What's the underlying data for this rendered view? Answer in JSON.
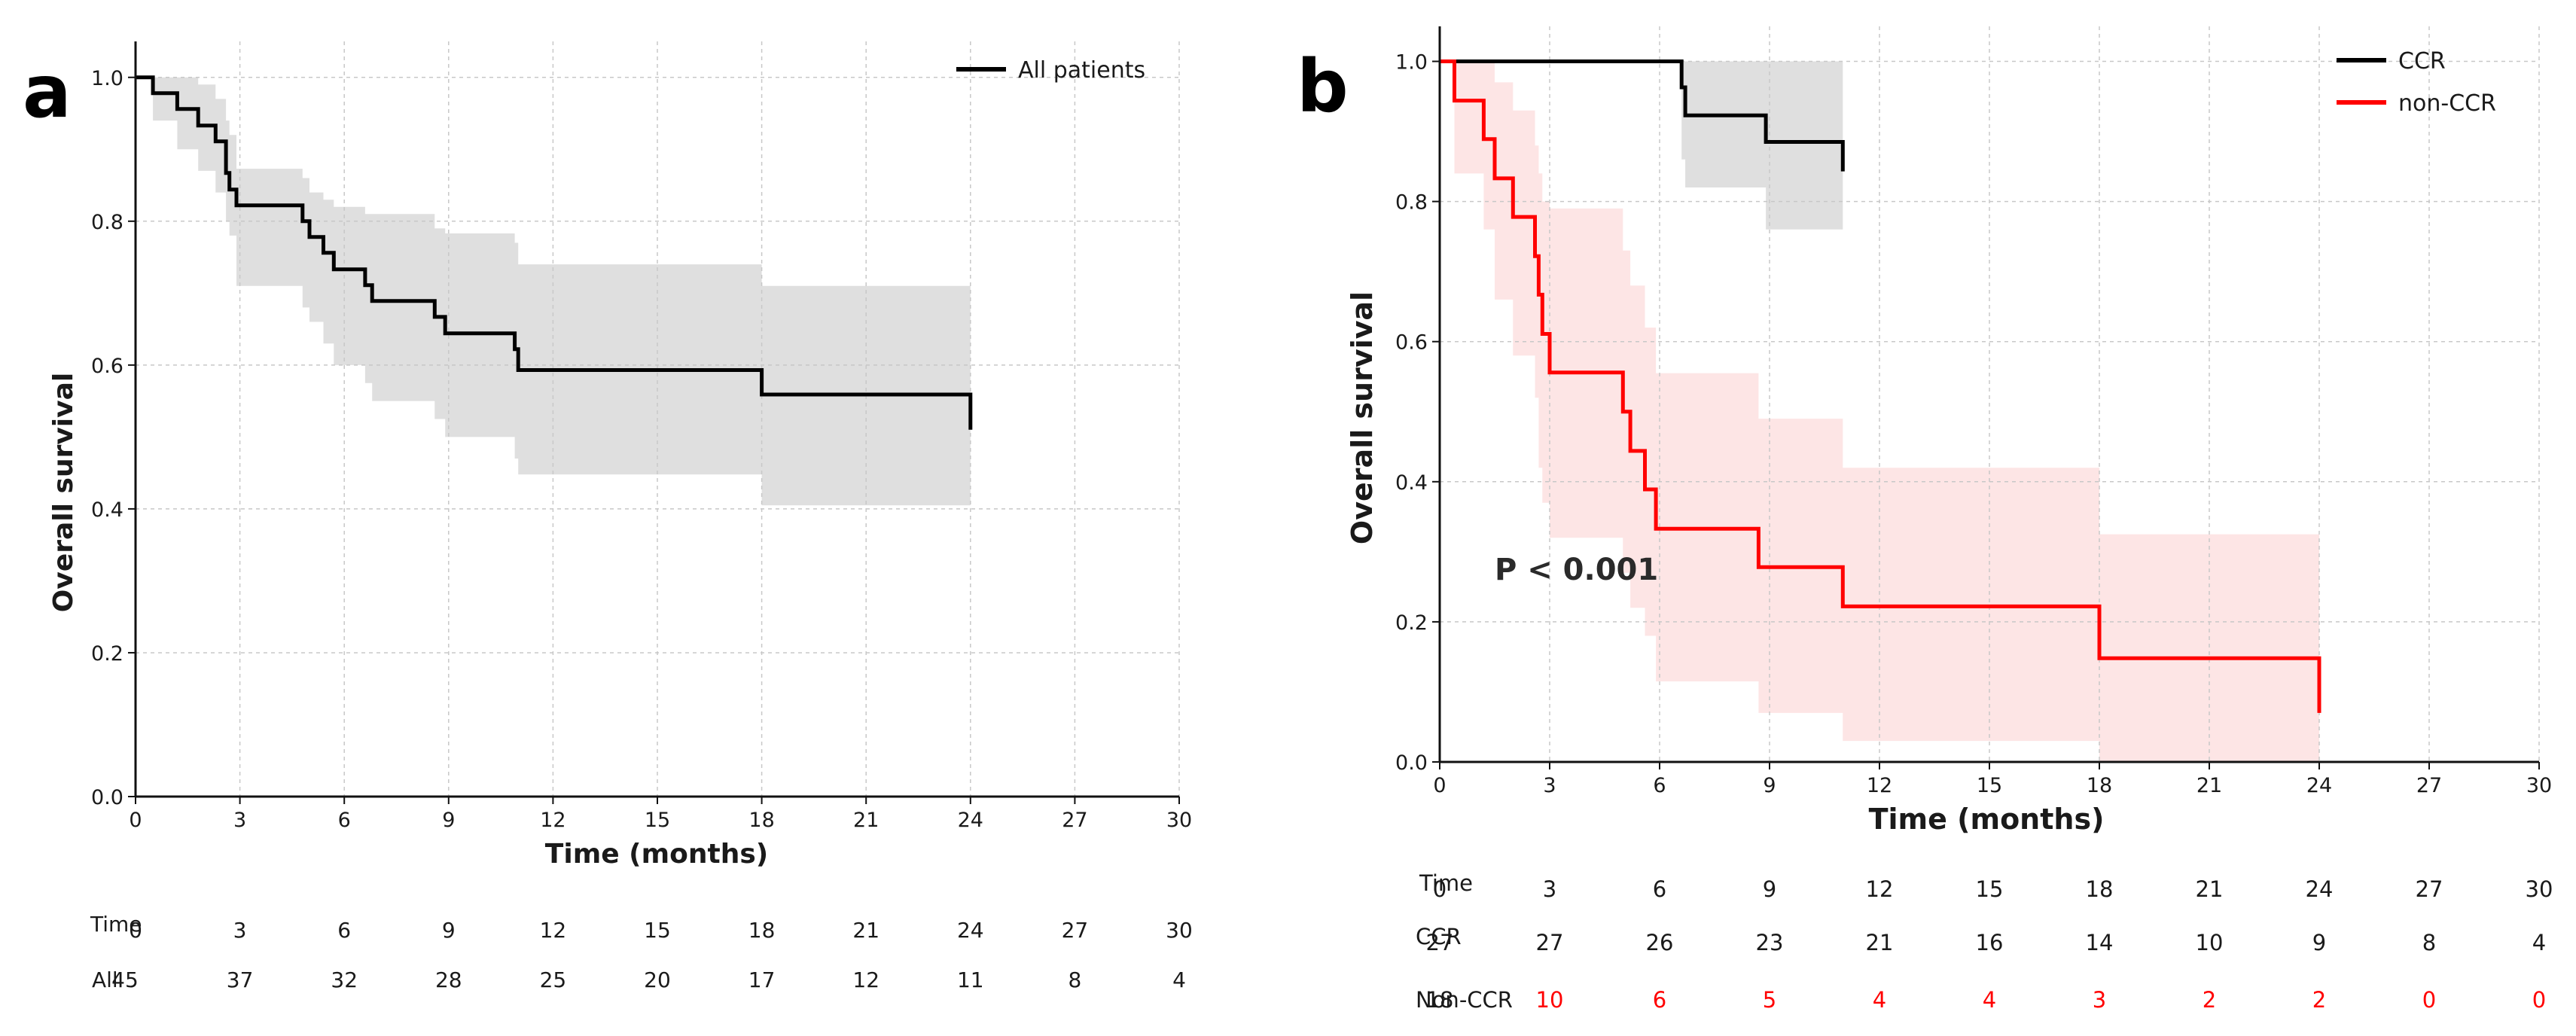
{
  "chart_data": [
    {
      "panel": "a",
      "type": "line",
      "subtype": "kaplan-meier",
      "xlabel": "Time (months)",
      "ylabel": "Overall survival",
      "xlim": [
        0,
        30
      ],
      "ylim": [
        0,
        1.05
      ],
      "xticks": [
        0,
        3,
        6,
        9,
        12,
        15,
        18,
        21,
        24,
        27,
        30
      ],
      "yticks": [
        0.0,
        0.2,
        0.4,
        0.6,
        0.8,
        1.0
      ],
      "grid": true,
      "legend_position": "top-right",
      "series": [
        {
          "name": "All patients",
          "color": "#000000",
          "band_color": "#d9d9d9",
          "steps": [
            [
              0,
              1.0
            ],
            [
              0.5,
              0.978
            ],
            [
              1.2,
              0.956
            ],
            [
              1.8,
              0.933
            ],
            [
              2.3,
              0.911
            ],
            [
              2.6,
              0.867
            ],
            [
              2.7,
              0.844
            ],
            [
              2.9,
              0.822
            ],
            [
              4.8,
              0.8
            ],
            [
              5.0,
              0.778
            ],
            [
              5.4,
              0.756
            ],
            [
              5.7,
              0.733
            ],
            [
              6.6,
              0.711
            ],
            [
              6.8,
              0.689
            ],
            [
              8.6,
              0.667
            ],
            [
              8.9,
              0.644
            ],
            [
              10.9,
              0.622
            ],
            [
              11.0,
              0.593
            ],
            [
              18.0,
              0.559
            ],
            [
              24.0,
              0.559
            ]
          ],
          "end": [
            24.0,
            0.51
          ],
          "lower": [
            [
              0,
              1.0
            ],
            [
              0.5,
              0.94
            ],
            [
              1.2,
              0.9
            ],
            [
              1.8,
              0.87
            ],
            [
              2.3,
              0.84
            ],
            [
              2.6,
              0.8
            ],
            [
              2.7,
              0.78
            ],
            [
              2.9,
              0.71
            ],
            [
              4.8,
              0.68
            ],
            [
              5.0,
              0.66
            ],
            [
              5.4,
              0.63
            ],
            [
              5.7,
              0.6
            ],
            [
              6.6,
              0.575
            ],
            [
              6.8,
              0.55
            ],
            [
              8.6,
              0.525
            ],
            [
              8.9,
              0.5
            ],
            [
              10.9,
              0.47
            ],
            [
              11.0,
              0.448
            ],
            [
              18.0,
              0.405
            ],
            [
              24.0,
              0.405
            ]
          ],
          "upper": [
            [
              0,
              1.0
            ],
            [
              0.5,
              1.0
            ],
            [
              1.2,
              1.0
            ],
            [
              1.8,
              0.99
            ],
            [
              2.3,
              0.97
            ],
            [
              2.6,
              0.94
            ],
            [
              2.7,
              0.92
            ],
            [
              2.9,
              0.873
            ],
            [
              4.8,
              0.86
            ],
            [
              5.0,
              0.84
            ],
            [
              5.4,
              0.83
            ],
            [
              5.7,
              0.82
            ],
            [
              6.6,
              0.81
            ],
            [
              6.8,
              0.81
            ],
            [
              8.6,
              0.79
            ],
            [
              8.9,
              0.783
            ],
            [
              10.9,
              0.77
            ],
            [
              11.0,
              0.74
            ],
            [
              18.0,
              0.71
            ],
            [
              24.0,
              0.71
            ]
          ]
        }
      ],
      "risk_table": {
        "header_label": "Time",
        "times": [
          "0",
          "3",
          "6",
          "9",
          "12",
          "15",
          "18",
          "21",
          "24",
          "27",
          "30"
        ],
        "rows": [
          {
            "label": "All",
            "color": "#1a1a1a",
            "values": [
              "45",
              "37",
              "32",
              "28",
              "25",
              "20",
              "17",
              "12",
              "11",
              "8",
              "4"
            ]
          }
        ]
      }
    },
    {
      "panel": "b",
      "type": "line",
      "subtype": "kaplan-meier",
      "xlabel": "Time (months)",
      "ylabel": "Overall survival",
      "xlim": [
        0,
        30
      ],
      "ylim": [
        0,
        1.05
      ],
      "xticks": [
        0,
        3,
        6,
        9,
        12,
        15,
        18,
        21,
        24,
        27,
        30
      ],
      "yticks": [
        0.0,
        0.2,
        0.4,
        0.6,
        0.8,
        1.0
      ],
      "grid": true,
      "legend_position": "top-right",
      "annotation": "P < 0.001",
      "annotation_at": [
        1.5,
        0.275
      ],
      "series": [
        {
          "name": "CCR",
          "color": "#000000",
          "band_color": "#d9d9d9",
          "steps": [
            [
              0,
              1.0
            ],
            [
              6.5,
              1.0
            ],
            [
              6.6,
              0.963
            ],
            [
              6.7,
              0.923
            ],
            [
              8.9,
              0.885
            ],
            [
              11.0,
              0.885
            ]
          ],
          "end": [
            11.0,
            0.843
          ],
          "lower": [
            [
              0,
              1.0
            ],
            [
              6.5,
              1.0
            ],
            [
              6.6,
              0.86
            ],
            [
              6.7,
              0.82
            ],
            [
              8.9,
              0.76
            ],
            [
              11.0,
              0.76
            ]
          ],
          "upper": [
            [
              0,
              1.0
            ],
            [
              6.5,
              1.0
            ],
            [
              6.6,
              1.0
            ],
            [
              6.7,
              1.0
            ],
            [
              8.9,
              1.0
            ],
            [
              11.0,
              1.0
            ]
          ]
        },
        {
          "name": "non-CCR",
          "color": "#ff0000",
          "band_color": "#fde0e0",
          "steps": [
            [
              0,
              1.0
            ],
            [
              0.4,
              0.944
            ],
            [
              1.2,
              0.889
            ],
            [
              1.5,
              0.833
            ],
            [
              2.0,
              0.778
            ],
            [
              2.6,
              0.722
            ],
            [
              2.7,
              0.667
            ],
            [
              2.8,
              0.611
            ],
            [
              3.0,
              0.556
            ],
            [
              5.0,
              0.5
            ],
            [
              5.2,
              0.444
            ],
            [
              5.6,
              0.389
            ],
            [
              5.9,
              0.333
            ],
            [
              8.7,
              0.278
            ],
            [
              11.0,
              0.222
            ],
            [
              18.0,
              0.148
            ],
            [
              24.0,
              0.148
            ]
          ],
          "end": [
            24.0,
            0.07
          ],
          "lower": [
            [
              0,
              1.0
            ],
            [
              0.4,
              0.84
            ],
            [
              1.2,
              0.76
            ],
            [
              1.5,
              0.66
            ],
            [
              2.0,
              0.58
            ],
            [
              2.6,
              0.52
            ],
            [
              2.7,
              0.42
            ],
            [
              2.8,
              0.37
            ],
            [
              3.0,
              0.32
            ],
            [
              5.0,
              0.27
            ],
            [
              5.2,
              0.22
            ],
            [
              5.6,
              0.18
            ],
            [
              5.9,
              0.115
            ],
            [
              8.7,
              0.07
            ],
            [
              11.0,
              0.03
            ],
            [
              18.0,
              0.0
            ],
            [
              24.0,
              0.0
            ]
          ],
          "upper": [
            [
              0,
              1.0
            ],
            [
              0.4,
              1.0
            ],
            [
              1.2,
              1.0
            ],
            [
              1.5,
              0.97
            ],
            [
              2.0,
              0.93
            ],
            [
              2.6,
              0.88
            ],
            [
              2.7,
              0.84
            ],
            [
              2.8,
              0.8
            ],
            [
              3.0,
              0.79
            ],
            [
              5.0,
              0.73
            ],
            [
              5.2,
              0.68
            ],
            [
              5.6,
              0.62
            ],
            [
              5.9,
              0.555
            ],
            [
              8.7,
              0.49
            ],
            [
              11.0,
              0.42
            ],
            [
              18.0,
              0.325
            ],
            [
              24.0,
              0.325
            ]
          ]
        }
      ],
      "risk_table": {
        "header_label": "Time",
        "times": [
          "0",
          "3",
          "6",
          "9",
          "12",
          "15",
          "18",
          "21",
          "24",
          "27",
          "30"
        ],
        "rows": [
          {
            "label": "CCR",
            "color": "#1a1a1a",
            "values": [
              "27",
              "27",
              "26",
              "23",
              "21",
              "16",
              "14",
              "10",
              "9",
              "8",
              "4"
            ]
          },
          {
            "label": "Non-CCR",
            "color": "#ff0000",
            "first_color": "#1a1a1a",
            "values": [
              "18",
              "10",
              "6",
              "5",
              "4",
              "4",
              "3",
              "2",
              "2",
              "0",
              "0"
            ]
          }
        ]
      }
    }
  ]
}
